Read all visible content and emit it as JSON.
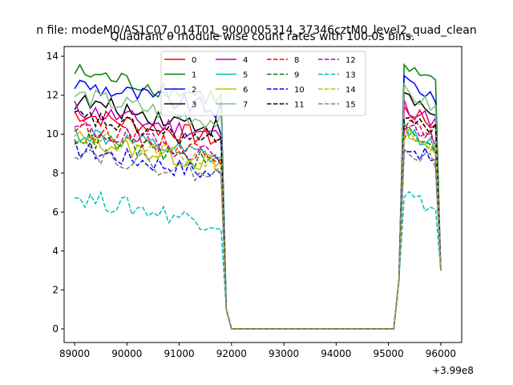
{
  "chart_data": {
    "type": "line",
    "suptitle": "n file: modeM0/AS1C07_014T01_9000005314_37346cztM0_level2_quad_clean",
    "title": "Quadrant 0 module wise count rates with 100.0s bins.",
    "xlabel": "",
    "ylabel": "",
    "x_offset_label": "+3.99e8",
    "xlim": [
      88800,
      96400
    ],
    "ylim": [
      -0.7,
      14.5
    ],
    "x_ticks": [
      89000,
      90000,
      91000,
      92000,
      93000,
      94000,
      95000,
      96000
    ],
    "x_tick_labels": [
      "89000",
      "90000",
      "91000",
      "92000",
      "93000",
      "94000",
      "95000",
      "96000"
    ],
    "y_ticks": [
      0,
      2,
      4,
      6,
      8,
      10,
      12,
      14
    ],
    "y_tick_labels": [
      "0",
      "2",
      "4",
      "6",
      "8",
      "10",
      "12",
      "14"
    ],
    "grid": false,
    "legend_position": "upper-center",
    "legend_columns": 4,
    "x_start": 89000,
    "x_step": 100,
    "series": [
      {
        "name": "0",
        "color": "#ff0000",
        "dash": "solid",
        "base": 10.3
      },
      {
        "name": "1",
        "color": "#008000",
        "dash": "solid",
        "base": 12.4
      },
      {
        "name": "2",
        "color": "#0000ff",
        "dash": "solid",
        "base": 11.8
      },
      {
        "name": "3",
        "color": "#000000",
        "dash": "solid",
        "base": 10.9
      },
      {
        "name": "4",
        "color": "#bf00bf",
        "dash": "solid",
        "base": 10.5
      },
      {
        "name": "5",
        "color": "#00bfbf",
        "dash": "solid",
        "base": 9.3
      },
      {
        "name": "6",
        "color": "#bfbf00",
        "dash": "solid",
        "base": 9.0
      },
      {
        "name": "7",
        "color": "#7fbf7f",
        "dash": "solid",
        "base": 11.2
      },
      {
        "name": "8",
        "color": "#ff0000",
        "dash": "dashed",
        "base": 9.6
      },
      {
        "name": "9",
        "color": "#008000",
        "dash": "dashed",
        "base": 9.1
      },
      {
        "name": "10",
        "color": "#0000ff",
        "dash": "dashed",
        "base": 8.5
      },
      {
        "name": "11",
        "color": "#000000",
        "dash": "dashed",
        "base": 10.1
      },
      {
        "name": "12",
        "color": "#bf00bf",
        "dash": "dashed",
        "base": 9.5
      },
      {
        "name": "13",
        "color": "#00bfbf",
        "dash": "dashed",
        "base": 6.0
      },
      {
        "name": "14",
        "color": "#bfbf00",
        "dash": "dashed",
        "base": 9.1
      },
      {
        "name": "15",
        "color": "#7f7f7f",
        "dash": "dashed",
        "base": 8.4
      }
    ]
  }
}
